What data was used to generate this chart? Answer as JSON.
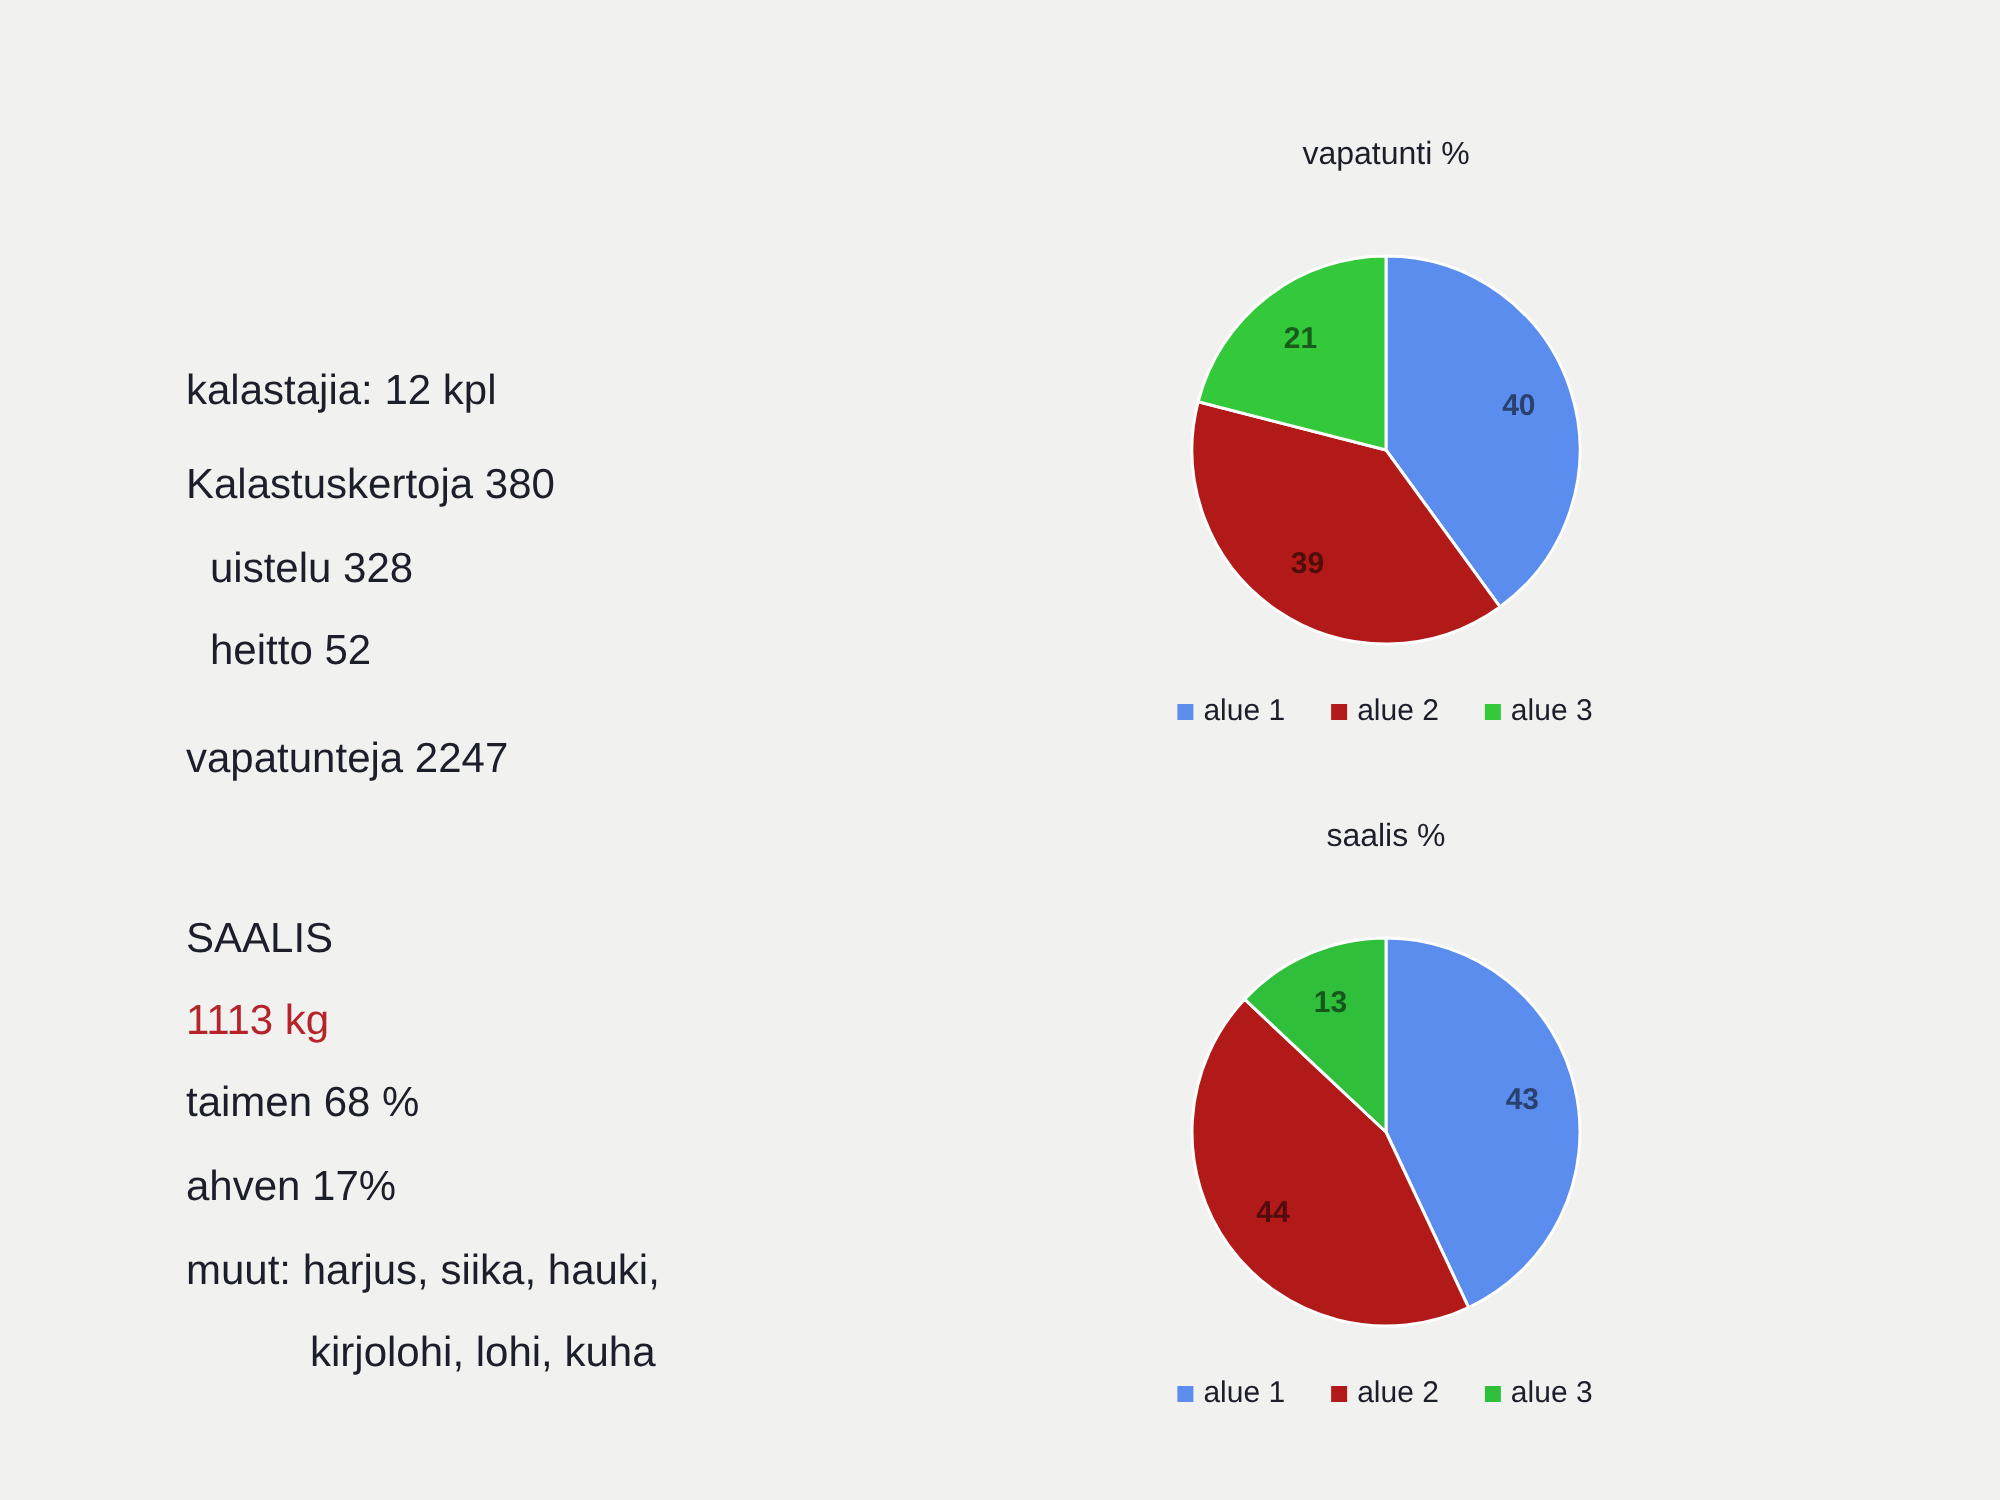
{
  "chart_data": [
    {
      "type": "other",
      "annotations": [
        "kalastajia: 12 kpl",
        "Kalastuskertoja 380",
        "uistelu 328",
        "heitto 52",
        "vapatunteja 2247",
        "SAALIS",
        "1113 kg",
        "taimen 68 %",
        "ahven 17%",
        "muut: harjus, siika, hauki, kirjolohi, lohi, kuha"
      ]
    },
    {
      "type": "pie",
      "title": "vapatunti %",
      "categories": [
        "alue 1",
        "alue 2",
        "alue 3"
      ],
      "values": [
        40,
        39,
        21
      ],
      "colors": [
        "#5b8def",
        "#b21a1a",
        "#33c93a"
      ],
      "data_labels": true,
      "legend": "bottom"
    },
    {
      "type": "pie",
      "title": "saalis %",
      "categories": [
        "alue 1",
        "alue 2",
        "alue 3"
      ],
      "values": [
        43,
        44,
        13
      ],
      "colors": [
        "#5b8def",
        "#b21a1a",
        "#2fbf3a"
      ],
      "data_labels": true,
      "legend": "bottom"
    }
  ]
}
